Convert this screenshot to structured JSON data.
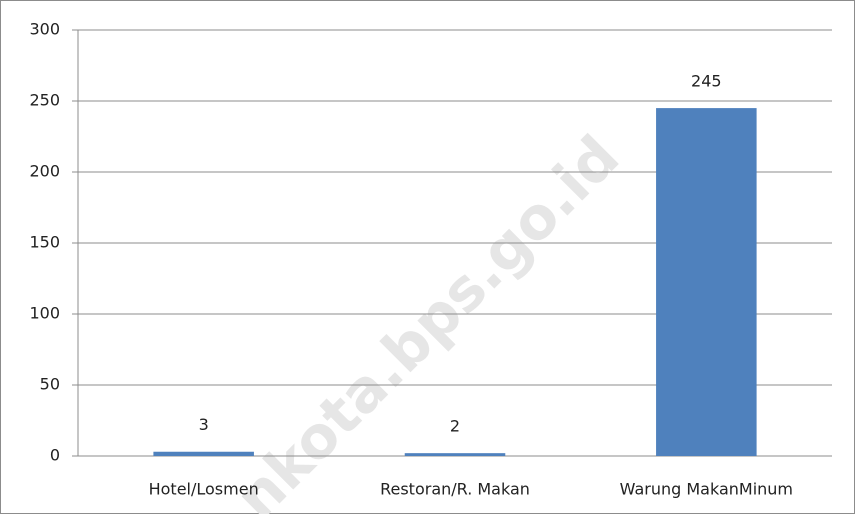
{
  "chart_data": {
    "type": "bar",
    "categories": [
      "Hotel/Losmen",
      "Restoran/R. Makan",
      "Warung MakanMinum"
    ],
    "values": [
      3,
      2,
      245
    ],
    "color": "#4f81bd",
    "ylim": [
      0,
      300
    ],
    "yticks": [
      0,
      50,
      100,
      150,
      200,
      250,
      300
    ],
    "grid": true,
    "watermark": "nkota.bps.go.id"
  }
}
